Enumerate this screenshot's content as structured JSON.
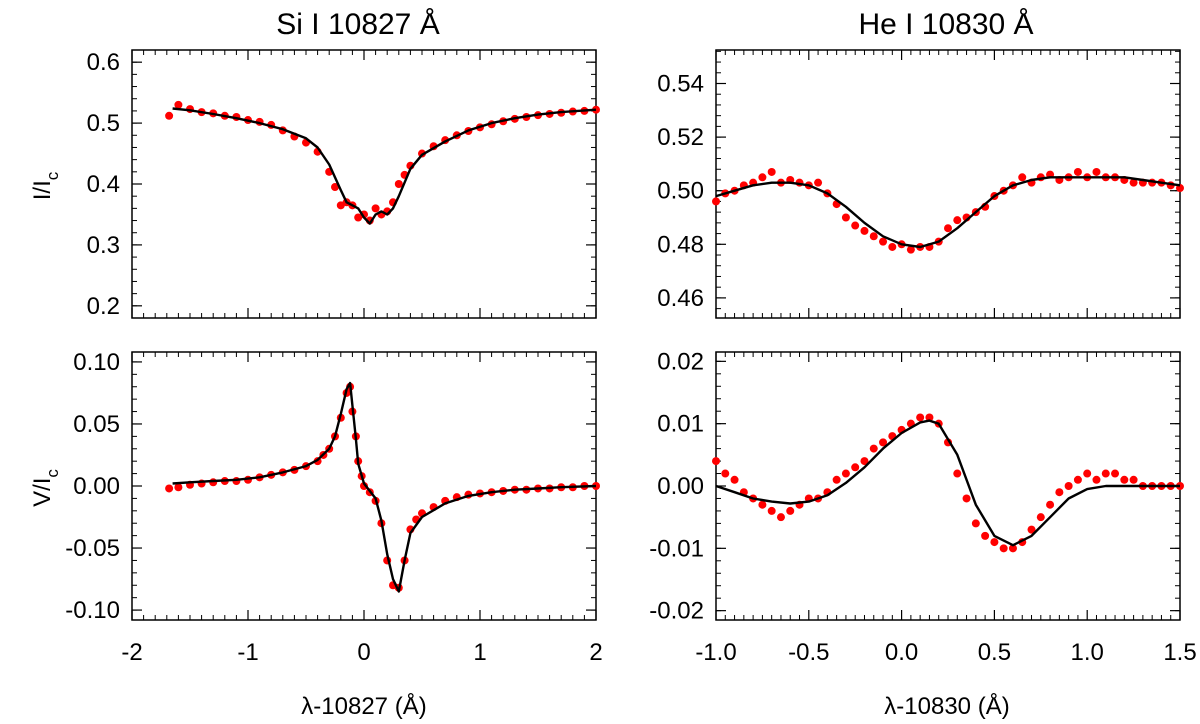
{
  "figure": {
    "columns": [
      {
        "title": "Si I 10827 Å",
        "xlabel": "λ-10827 (Å)"
      },
      {
        "title": "He I 10830 Å",
        "xlabel": "λ-10830 (Å)"
      }
    ],
    "rows": [
      {
        "ylabel_main": "I/I",
        "ylabel_sub": "c"
      },
      {
        "ylabel_main": "V/I",
        "ylabel_sub": "c"
      }
    ]
  },
  "chart_data": [
    {
      "type": "scatter",
      "panel": "Si-I",
      "xlim": [
        -2,
        2
      ],
      "ylim": [
        0.18,
        0.62
      ],
      "xticks": [
        -2,
        -1,
        0,
        1,
        2
      ],
      "xtick_labels": [
        "-2",
        "-1",
        "0",
        "1",
        "2"
      ],
      "yticks": [
        0.2,
        0.3,
        0.4,
        0.5,
        0.6
      ],
      "ytick_labels": [
        "0.2",
        "0.3",
        "0.4",
        "0.5",
        "0.6"
      ],
      "series": [
        {
          "role": "observed",
          "color": "#ff0000",
          "style": "dots",
          "x": [
            -1.68,
            -1.6,
            -1.5,
            -1.4,
            -1.3,
            -1.2,
            -1.1,
            -1.0,
            -0.9,
            -0.8,
            -0.7,
            -0.6,
            -0.5,
            -0.4,
            -0.3,
            -0.25,
            -0.2,
            -0.15,
            -0.1,
            -0.05,
            0.0,
            0.05,
            0.1,
            0.15,
            0.2,
            0.25,
            0.3,
            0.35,
            0.4,
            0.5,
            0.6,
            0.7,
            0.8,
            0.9,
            1.0,
            1.1,
            1.2,
            1.3,
            1.4,
            1.5,
            1.6,
            1.7,
            1.8,
            1.9,
            2.0
          ],
          "y": [
            0.512,
            0.53,
            0.523,
            0.518,
            0.516,
            0.512,
            0.51,
            0.505,
            0.502,
            0.497,
            0.488,
            0.478,
            0.468,
            0.453,
            0.42,
            0.395,
            0.365,
            0.37,
            0.365,
            0.345,
            0.35,
            0.34,
            0.36,
            0.35,
            0.355,
            0.37,
            0.4,
            0.415,
            0.43,
            0.45,
            0.462,
            0.472,
            0.48,
            0.487,
            0.493,
            0.498,
            0.503,
            0.507,
            0.51,
            0.513,
            0.515,
            0.517,
            0.519,
            0.52,
            0.522
          ]
        },
        {
          "role": "fit",
          "color": "#000000",
          "style": "line",
          "x": [
            -1.65,
            -1.5,
            -1.3,
            -1.1,
            -0.9,
            -0.7,
            -0.5,
            -0.4,
            -0.3,
            -0.2,
            -0.15,
            -0.1,
            -0.05,
            0.0,
            0.05,
            0.1,
            0.15,
            0.2,
            0.25,
            0.3,
            0.4,
            0.5,
            0.7,
            0.9,
            1.1,
            1.3,
            1.5,
            1.7,
            2.0
          ],
          "y": [
            0.524,
            0.521,
            0.515,
            0.508,
            0.5,
            0.49,
            0.475,
            0.46,
            0.432,
            0.39,
            0.37,
            0.365,
            0.36,
            0.345,
            0.335,
            0.35,
            0.355,
            0.35,
            0.36,
            0.38,
            0.425,
            0.448,
            0.47,
            0.488,
            0.5,
            0.508,
            0.514,
            0.518,
            0.522
          ]
        }
      ]
    },
    {
      "type": "scatter",
      "panel": "He-I",
      "xlim": [
        -1.0,
        1.5
      ],
      "ylim": [
        0.4525,
        0.5525
      ],
      "xticks": [
        -1.0,
        -0.5,
        0.0,
        0.5,
        1.0,
        1.5
      ],
      "xtick_labels": [
        "-1.0",
        "-0.5",
        "0.0",
        "0.5",
        "1.0",
        "1.5"
      ],
      "yticks": [
        0.46,
        0.48,
        0.5,
        0.52,
        0.54
      ],
      "ytick_labels": [
        "0.46",
        "0.48",
        "0.50",
        "0.52",
        "0.54"
      ],
      "series": [
        {
          "role": "observed",
          "color": "#ff0000",
          "style": "dots",
          "x": [
            -1.0,
            -0.95,
            -0.9,
            -0.85,
            -0.8,
            -0.75,
            -0.7,
            -0.65,
            -0.6,
            -0.55,
            -0.5,
            -0.45,
            -0.4,
            -0.35,
            -0.3,
            -0.25,
            -0.2,
            -0.15,
            -0.1,
            -0.05,
            0.0,
            0.05,
            0.1,
            0.15,
            0.2,
            0.25,
            0.3,
            0.35,
            0.4,
            0.45,
            0.5,
            0.55,
            0.6,
            0.65,
            0.7,
            0.75,
            0.8,
            0.85,
            0.9,
            0.95,
            1.0,
            1.05,
            1.1,
            1.15,
            1.2,
            1.25,
            1.3,
            1.35,
            1.4,
            1.45,
            1.5
          ],
          "y": [
            0.496,
            0.499,
            0.5,
            0.502,
            0.503,
            0.505,
            0.507,
            0.503,
            0.504,
            0.503,
            0.502,
            0.503,
            0.499,
            0.495,
            0.49,
            0.487,
            0.485,
            0.483,
            0.481,
            0.479,
            0.48,
            0.478,
            0.479,
            0.479,
            0.481,
            0.486,
            0.489,
            0.49,
            0.492,
            0.494,
            0.498,
            0.5,
            0.502,
            0.505,
            0.503,
            0.505,
            0.506,
            0.504,
            0.505,
            0.507,
            0.505,
            0.507,
            0.505,
            0.505,
            0.504,
            0.503,
            0.503,
            0.503,
            0.503,
            0.502,
            0.501
          ]
        },
        {
          "role": "fit",
          "color": "#000000",
          "style": "line",
          "x": [
            -1.0,
            -0.9,
            -0.8,
            -0.7,
            -0.6,
            -0.5,
            -0.4,
            -0.3,
            -0.2,
            -0.1,
            0.0,
            0.1,
            0.2,
            0.3,
            0.4,
            0.5,
            0.6,
            0.7,
            0.8,
            0.9,
            1.0,
            1.1,
            1.2,
            1.3,
            1.4,
            1.5
          ],
          "y": [
            0.498,
            0.5,
            0.502,
            0.503,
            0.503,
            0.502,
            0.499,
            0.494,
            0.488,
            0.483,
            0.48,
            0.479,
            0.481,
            0.486,
            0.492,
            0.498,
            0.502,
            0.504,
            0.505,
            0.505,
            0.505,
            0.505,
            0.505,
            0.504,
            0.503,
            0.502
          ]
        }
      ]
    },
    {
      "type": "scatter",
      "panel": "Si-V",
      "xlim": [
        -2,
        2
      ],
      "ylim": [
        -0.108,
        0.108
      ],
      "xticks": [
        -2,
        -1,
        0,
        1,
        2
      ],
      "xtick_labels": [
        "-2",
        "-1",
        "0",
        "1",
        "2"
      ],
      "yticks": [
        -0.1,
        -0.05,
        0.0,
        0.05,
        0.1
      ],
      "ytick_labels": [
        "-0.10",
        "-0.05",
        "0.00",
        "0.05",
        "0.10"
      ],
      "series": [
        {
          "role": "observed",
          "color": "#ff0000",
          "style": "dots",
          "x": [
            -1.68,
            -1.6,
            -1.5,
            -1.4,
            -1.3,
            -1.2,
            -1.1,
            -1.0,
            -0.9,
            -0.8,
            -0.7,
            -0.6,
            -0.5,
            -0.4,
            -0.35,
            -0.3,
            -0.25,
            -0.2,
            -0.15,
            -0.12,
            -0.1,
            -0.07,
            -0.05,
            -0.02,
            0.0,
            0.05,
            0.1,
            0.15,
            0.2,
            0.25,
            0.3,
            0.35,
            0.4,
            0.45,
            0.5,
            0.6,
            0.7,
            0.8,
            0.9,
            1.0,
            1.1,
            1.2,
            1.3,
            1.4,
            1.5,
            1.6,
            1.7,
            1.8,
            1.9,
            2.0
          ],
          "y": [
            -0.002,
            -0.001,
            0.001,
            0.002,
            0.003,
            0.004,
            0.004,
            0.005,
            0.007,
            0.009,
            0.011,
            0.013,
            0.016,
            0.02,
            0.025,
            0.03,
            0.04,
            0.055,
            0.075,
            0.08,
            0.06,
            0.04,
            0.02,
            0.008,
            0.0,
            -0.005,
            -0.012,
            -0.03,
            -0.06,
            -0.08,
            -0.082,
            -0.06,
            -0.035,
            -0.027,
            -0.022,
            -0.017,
            -0.012,
            -0.009,
            -0.007,
            -0.006,
            -0.005,
            -0.004,
            -0.003,
            -0.003,
            -0.002,
            -0.002,
            -0.001,
            -0.001,
            0.0,
            0.0
          ]
        },
        {
          "role": "fit",
          "color": "#000000",
          "style": "line",
          "x": [
            -1.65,
            -1.5,
            -1.3,
            -1.1,
            -0.9,
            -0.7,
            -0.5,
            -0.4,
            -0.3,
            -0.25,
            -0.2,
            -0.15,
            -0.12,
            -0.1,
            -0.07,
            -0.05,
            0.0,
            0.05,
            0.1,
            0.15,
            0.2,
            0.25,
            0.3,
            0.35,
            0.4,
            0.5,
            0.7,
            0.9,
            1.1,
            1.3,
            1.5,
            1.7,
            2.0
          ],
          "y": [
            0.002,
            0.003,
            0.004,
            0.005,
            0.007,
            0.011,
            0.016,
            0.021,
            0.03,
            0.04,
            0.058,
            0.078,
            0.083,
            0.065,
            0.038,
            0.018,
            0.002,
            -0.004,
            -0.01,
            -0.028,
            -0.055,
            -0.075,
            -0.085,
            -0.06,
            -0.038,
            -0.025,
            -0.014,
            -0.008,
            -0.005,
            -0.003,
            -0.002,
            -0.001,
            0.0
          ]
        }
      ]
    },
    {
      "type": "scatter",
      "panel": "He-V",
      "xlim": [
        -1.0,
        1.5
      ],
      "ylim": [
        -0.0215,
        0.0215
      ],
      "xticks": [
        -1.0,
        -0.5,
        0.0,
        0.5,
        1.0,
        1.5
      ],
      "xtick_labels": [
        "-1.0",
        "-0.5",
        "0.0",
        "0.5",
        "1.0",
        "1.5"
      ],
      "yticks": [
        -0.02,
        -0.01,
        0.0,
        0.01,
        0.02
      ],
      "ytick_labels": [
        "-0.02",
        "-0.01",
        "0.00",
        "0.01",
        "0.02"
      ],
      "series": [
        {
          "role": "observed",
          "color": "#ff0000",
          "style": "dots",
          "x": [
            -1.0,
            -0.95,
            -0.9,
            -0.85,
            -0.8,
            -0.75,
            -0.7,
            -0.65,
            -0.6,
            -0.55,
            -0.5,
            -0.45,
            -0.4,
            -0.35,
            -0.3,
            -0.25,
            -0.2,
            -0.15,
            -0.1,
            -0.05,
            0.0,
            0.05,
            0.1,
            0.15,
            0.2,
            0.25,
            0.3,
            0.35,
            0.4,
            0.45,
            0.5,
            0.55,
            0.6,
            0.65,
            0.7,
            0.75,
            0.8,
            0.85,
            0.9,
            0.95,
            1.0,
            1.05,
            1.1,
            1.15,
            1.2,
            1.25,
            1.3,
            1.35,
            1.4,
            1.45,
            1.5
          ],
          "y": [
            0.004,
            0.002,
            0.001,
            -0.001,
            -0.002,
            -0.003,
            -0.004,
            -0.005,
            -0.004,
            -0.003,
            -0.002,
            -0.002,
            -0.001,
            0.001,
            0.002,
            0.003,
            0.004,
            0.006,
            0.007,
            0.008,
            0.009,
            0.01,
            0.011,
            0.011,
            0.01,
            0.007,
            0.002,
            -0.002,
            -0.006,
            -0.008,
            -0.009,
            -0.01,
            -0.01,
            -0.009,
            -0.007,
            -0.005,
            -0.003,
            -0.001,
            0.0,
            0.001,
            0.002,
            0.001,
            0.002,
            0.002,
            0.001,
            0.001,
            0.0,
            0.0,
            0.0,
            0.0,
            0.0
          ]
        },
        {
          "role": "fit",
          "color": "#000000",
          "style": "line",
          "x": [
            -1.0,
            -0.9,
            -0.8,
            -0.7,
            -0.6,
            -0.5,
            -0.4,
            -0.3,
            -0.2,
            -0.1,
            0.0,
            0.1,
            0.15,
            0.2,
            0.3,
            0.4,
            0.5,
            0.6,
            0.7,
            0.8,
            0.9,
            1.0,
            1.1,
            1.2,
            1.3,
            1.4,
            1.5
          ],
          "y": [
            0.0,
            -0.001,
            -0.002,
            -0.0025,
            -0.0028,
            -0.0025,
            -0.0015,
            0.0005,
            0.003,
            0.006,
            0.0085,
            0.0102,
            0.0105,
            0.01,
            0.005,
            -0.003,
            -0.008,
            -0.0095,
            -0.008,
            -0.005,
            -0.002,
            -0.0005,
            0.0,
            0.0,
            0.0,
            0.0,
            0.0
          ]
        }
      ]
    }
  ]
}
